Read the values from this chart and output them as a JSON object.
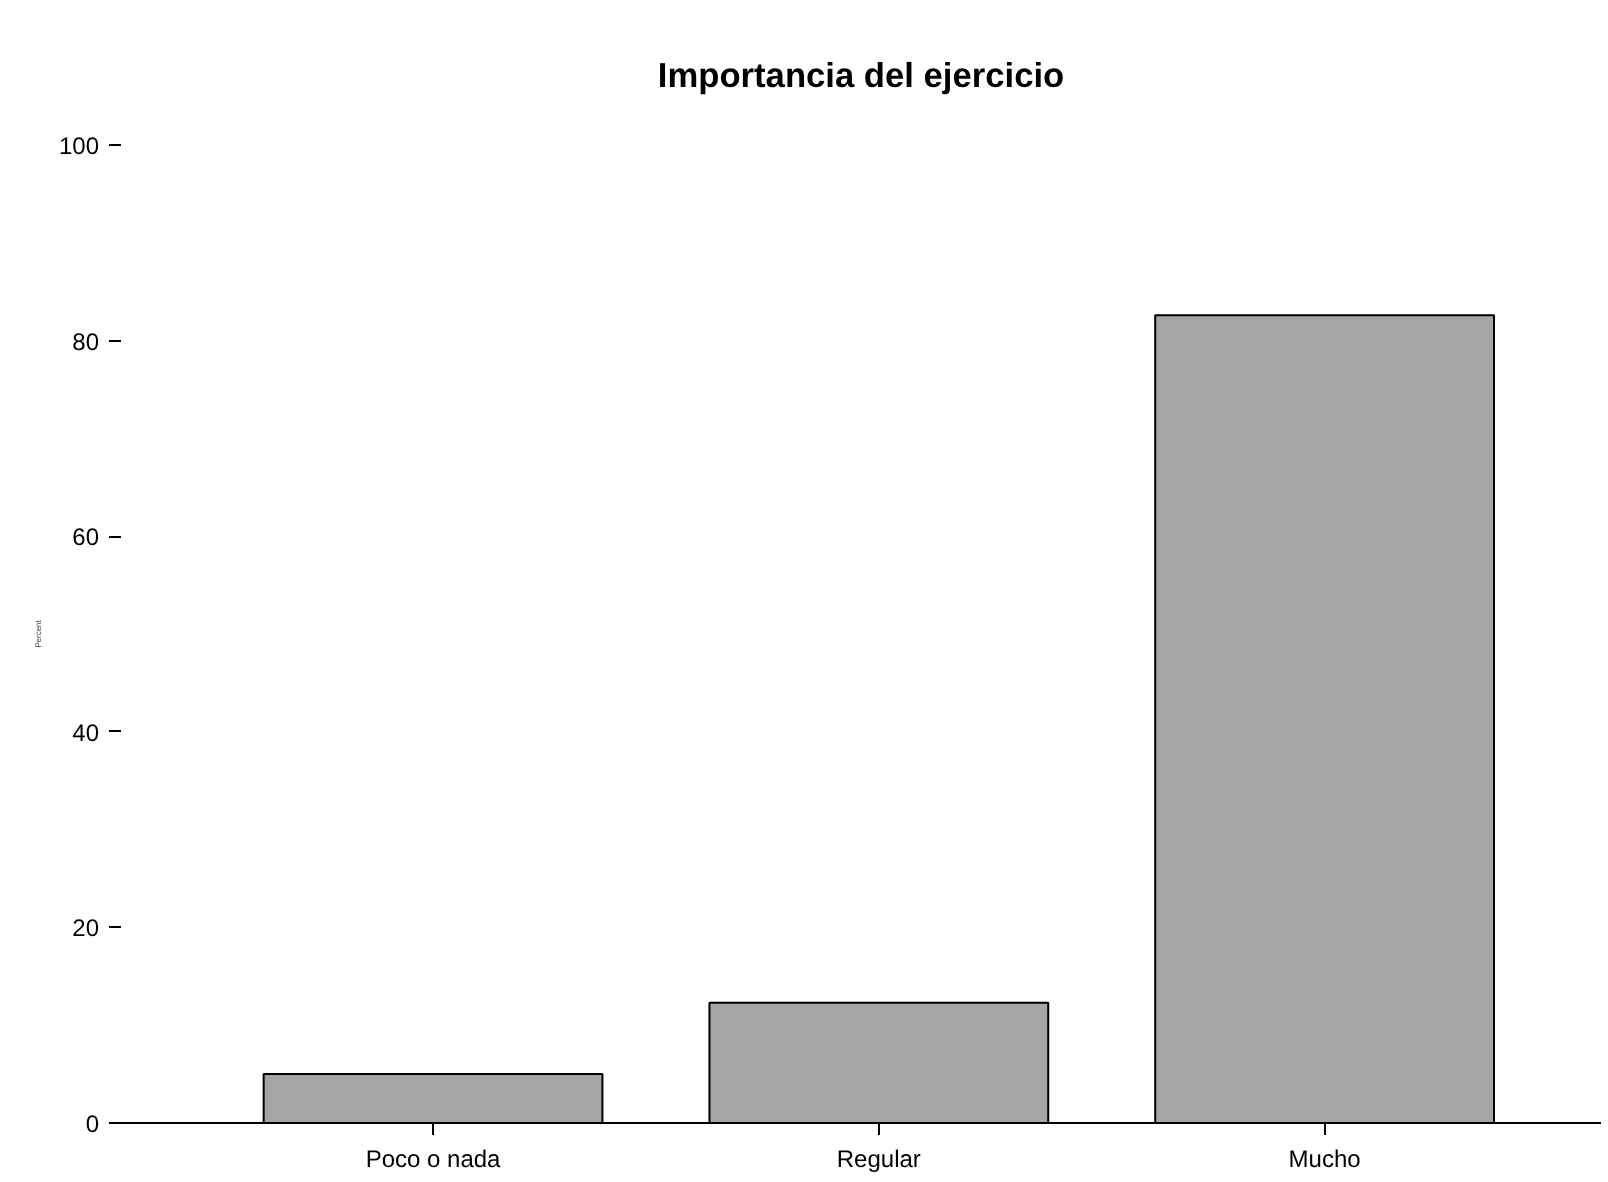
{
  "chart_data": {
    "type": "bar",
    "title": "Importancia del ejercicio",
    "ylabel": "Percent",
    "categories": [
      "Poco o nada",
      "Regular",
      "Mucho"
    ],
    "values": [
      5.0,
      12.3,
      82.6
    ],
    "color": "#a5a5a5",
    "ylim": [
      0,
      100
    ],
    "yticks": [
      0,
      20,
      40,
      60,
      80,
      100
    ],
    "grid": false
  }
}
